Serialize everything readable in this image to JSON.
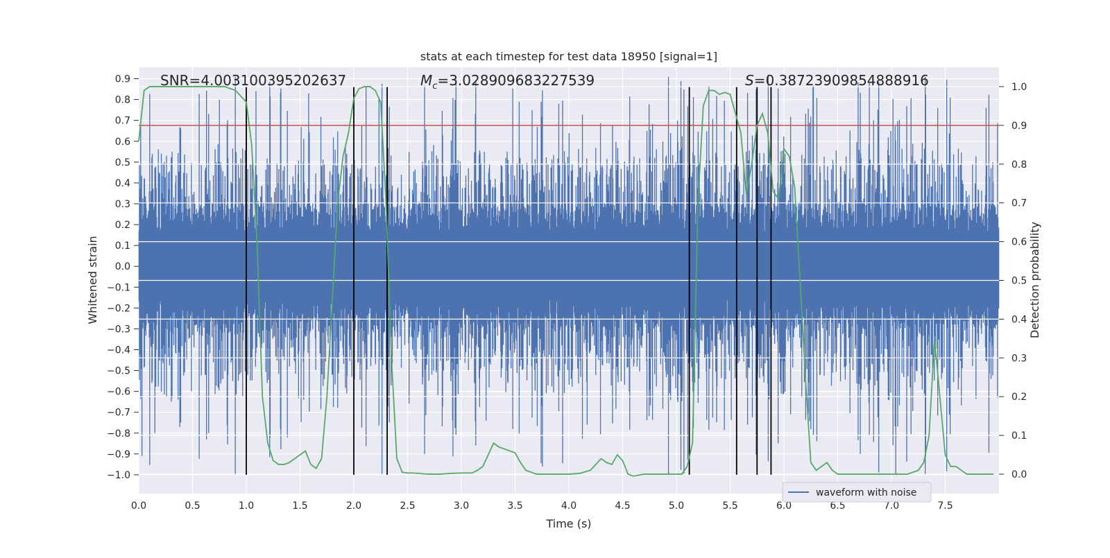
{
  "chart_data": {
    "type": "line",
    "title": "stats at each timestep for test data 18950 [signal=1]",
    "xlabel": "Time (s)",
    "ylabel_left": "Whitened strain",
    "ylabel_right": "Detection probability",
    "xlim": [
      0.0,
      8.0
    ],
    "ylim_left": [
      -1.09,
      0.955
    ],
    "ylim_right": [
      -0.05,
      1.05
    ],
    "x_ticks": [
      "0.0",
      "0.5",
      "1.0",
      "1.5",
      "2.0",
      "2.5",
      "3.0",
      "3.5",
      "4.0",
      "4.5",
      "5.0",
      "5.5",
      "6.0",
      "6.5",
      "7.0",
      "7.5"
    ],
    "x_tick_values": [
      0.0,
      0.5,
      1.0,
      1.5,
      2.0,
      2.5,
      3.0,
      3.5,
      4.0,
      4.5,
      5.0,
      5.5,
      6.0,
      6.5,
      7.0,
      7.5
    ],
    "y_left_ticks": [
      "0.9",
      "0.8",
      "0.7",
      "0.6",
      "0.5",
      "0.4",
      "0.3",
      "0.2",
      "0.1",
      "0.0",
      "−0.1",
      "−0.2",
      "−0.3",
      "−0.4",
      "−0.5",
      "−0.6",
      "−0.7",
      "−0.8",
      "−0.9",
      "−1.0"
    ],
    "y_left_tick_values": [
      0.9,
      0.8,
      0.7,
      0.6,
      0.5,
      0.4,
      0.3,
      0.2,
      0.1,
      0.0,
      -0.1,
      -0.2,
      -0.3,
      -0.4,
      -0.5,
      -0.6,
      -0.7,
      -0.8,
      -0.9,
      -1.0
    ],
    "y_right_ticks": [
      "1.0",
      "0.9",
      "0.8",
      "0.7",
      "0.6",
      "0.5",
      "0.4",
      "0.3",
      "0.2",
      "0.1",
      "0.0"
    ],
    "y_right_tick_values": [
      1.0,
      0.9,
      0.8,
      0.7,
      0.6,
      0.5,
      0.4,
      0.3,
      0.2,
      0.1,
      0.0
    ],
    "grid": true,
    "legend": {
      "placement": "lower-right",
      "entries": [
        "waveform with noise"
      ]
    },
    "annotations": [
      {
        "prefix": "SNR=",
        "value": "4.003100395202637"
      },
      {
        "prefix": "M",
        "sub": "c",
        "eq": "=",
        "value": "3.028909683227539"
      },
      {
        "prefix": "S",
        "eq": "=",
        "value": "0.38723909854888916"
      }
    ],
    "threshold_line": {
      "axis": "right",
      "value": 0.9,
      "color": "#c44e52"
    },
    "vertical_lines": {
      "x": [
        1.0,
        2.0,
        2.31,
        5.12,
        5.56,
        5.75,
        5.88
      ],
      "ymin": -1.0,
      "ymax": 0.86,
      "color": "#000000"
    },
    "series": [
      {
        "name": "waveform with noise",
        "axis": "left",
        "color": "#4c72b0",
        "kind": "noise",
        "band_amplitude": 0.3,
        "peak_amplitude": 0.9,
        "outliers": [
          {
            "x": 0.03,
            "y": -0.91
          },
          {
            "x": 0.15,
            "y": -0.8
          },
          {
            "x": 0.75,
            "y": 0.8
          },
          {
            "x": 1.09,
            "y": 0.84
          },
          {
            "x": 1.58,
            "y": 0.83
          },
          {
            "x": 5.04,
            "y": -0.81
          },
          {
            "x": 6.27,
            "y": 0.86
          },
          {
            "x": 7.04,
            "y": -1.0
          },
          {
            "x": 7.43,
            "y": 0.76
          },
          {
            "x": 7.88,
            "y": 0.76
          },
          {
            "x": 4.17,
            "y": -0.76
          },
          {
            "x": 3.23,
            "y": -0.74
          }
        ]
      },
      {
        "name": "",
        "axis": "right",
        "color": "#55a868",
        "x": [
          0.0,
          0.05,
          0.1,
          0.2,
          0.5,
          0.6,
          0.8,
          0.9,
          1.0,
          1.05,
          1.1,
          1.15,
          1.2,
          1.25,
          1.3,
          1.35,
          1.4,
          1.5,
          1.55,
          1.6,
          1.65,
          1.7,
          1.75,
          1.8,
          1.85,
          1.9,
          1.95,
          2.0,
          2.05,
          2.1,
          2.15,
          2.2,
          2.25,
          2.3,
          2.35,
          2.4,
          2.45,
          2.5,
          2.55,
          2.6,
          2.65,
          2.7,
          2.8,
          2.9,
          3.0,
          3.1,
          3.15,
          3.2,
          3.3,
          3.35,
          3.4,
          3.5,
          3.55,
          3.6,
          3.7,
          3.8,
          4.0,
          4.1,
          4.2,
          4.3,
          4.35,
          4.4,
          4.45,
          4.5,
          4.55,
          4.6,
          4.7,
          4.8,
          5.0,
          5.05,
          5.1,
          5.15,
          5.2,
          5.25,
          5.3,
          5.35,
          5.4,
          5.45,
          5.5,
          5.55,
          5.6,
          5.65,
          5.7,
          5.75,
          5.8,
          5.85,
          5.9,
          5.95,
          6.0,
          6.05,
          6.1,
          6.15,
          6.2,
          6.25,
          6.3,
          6.35,
          6.4,
          6.45,
          6.5,
          6.55,
          6.6,
          6.7,
          6.8,
          7.0,
          7.1,
          7.15,
          7.2,
          7.25,
          7.3,
          7.35,
          7.4,
          7.45,
          7.5,
          7.55,
          7.6,
          7.65,
          7.7,
          7.8,
          7.95
        ],
        "y": [
          0.86,
          0.99,
          1.0,
          1.0,
          1.0,
          1.0,
          1.0,
          0.99,
          0.96,
          0.85,
          0.6,
          0.2,
          0.08,
          0.035,
          0.025,
          0.025,
          0.03,
          0.05,
          0.06,
          0.025,
          0.015,
          0.04,
          0.2,
          0.45,
          0.7,
          0.82,
          0.88,
          0.97,
          0.995,
          1.0,
          1.0,
          0.99,
          0.96,
          0.7,
          0.3,
          0.04,
          0.005,
          0.003,
          0.003,
          0.002,
          0.001,
          0.0,
          0.0,
          0.002,
          0.003,
          0.003,
          0.01,
          0.02,
          0.08,
          0.07,
          0.065,
          0.055,
          0.03,
          0.01,
          0.0,
          0.0,
          0.0,
          0.002,
          0.01,
          0.04,
          0.03,
          0.025,
          0.05,
          0.035,
          0.0,
          -0.005,
          0.0,
          0.0,
          0.0,
          0.0,
          0.02,
          0.08,
          0.7,
          0.95,
          0.99,
          0.99,
          0.98,
          0.985,
          0.98,
          0.93,
          0.88,
          0.72,
          0.8,
          0.9,
          0.93,
          0.88,
          0.73,
          0.71,
          0.84,
          0.82,
          0.74,
          0.5,
          0.25,
          0.03,
          0.01,
          0.02,
          0.03,
          0.01,
          0.0,
          0.0,
          0.0,
          0.0,
          0.0,
          0.0,
          0.0,
          0.0,
          0.005,
          0.01,
          0.03,
          0.1,
          0.35,
          0.2,
          0.05,
          0.02,
          0.02,
          0.01,
          0.0,
          0.0,
          0.0
        ]
      }
    ]
  }
}
